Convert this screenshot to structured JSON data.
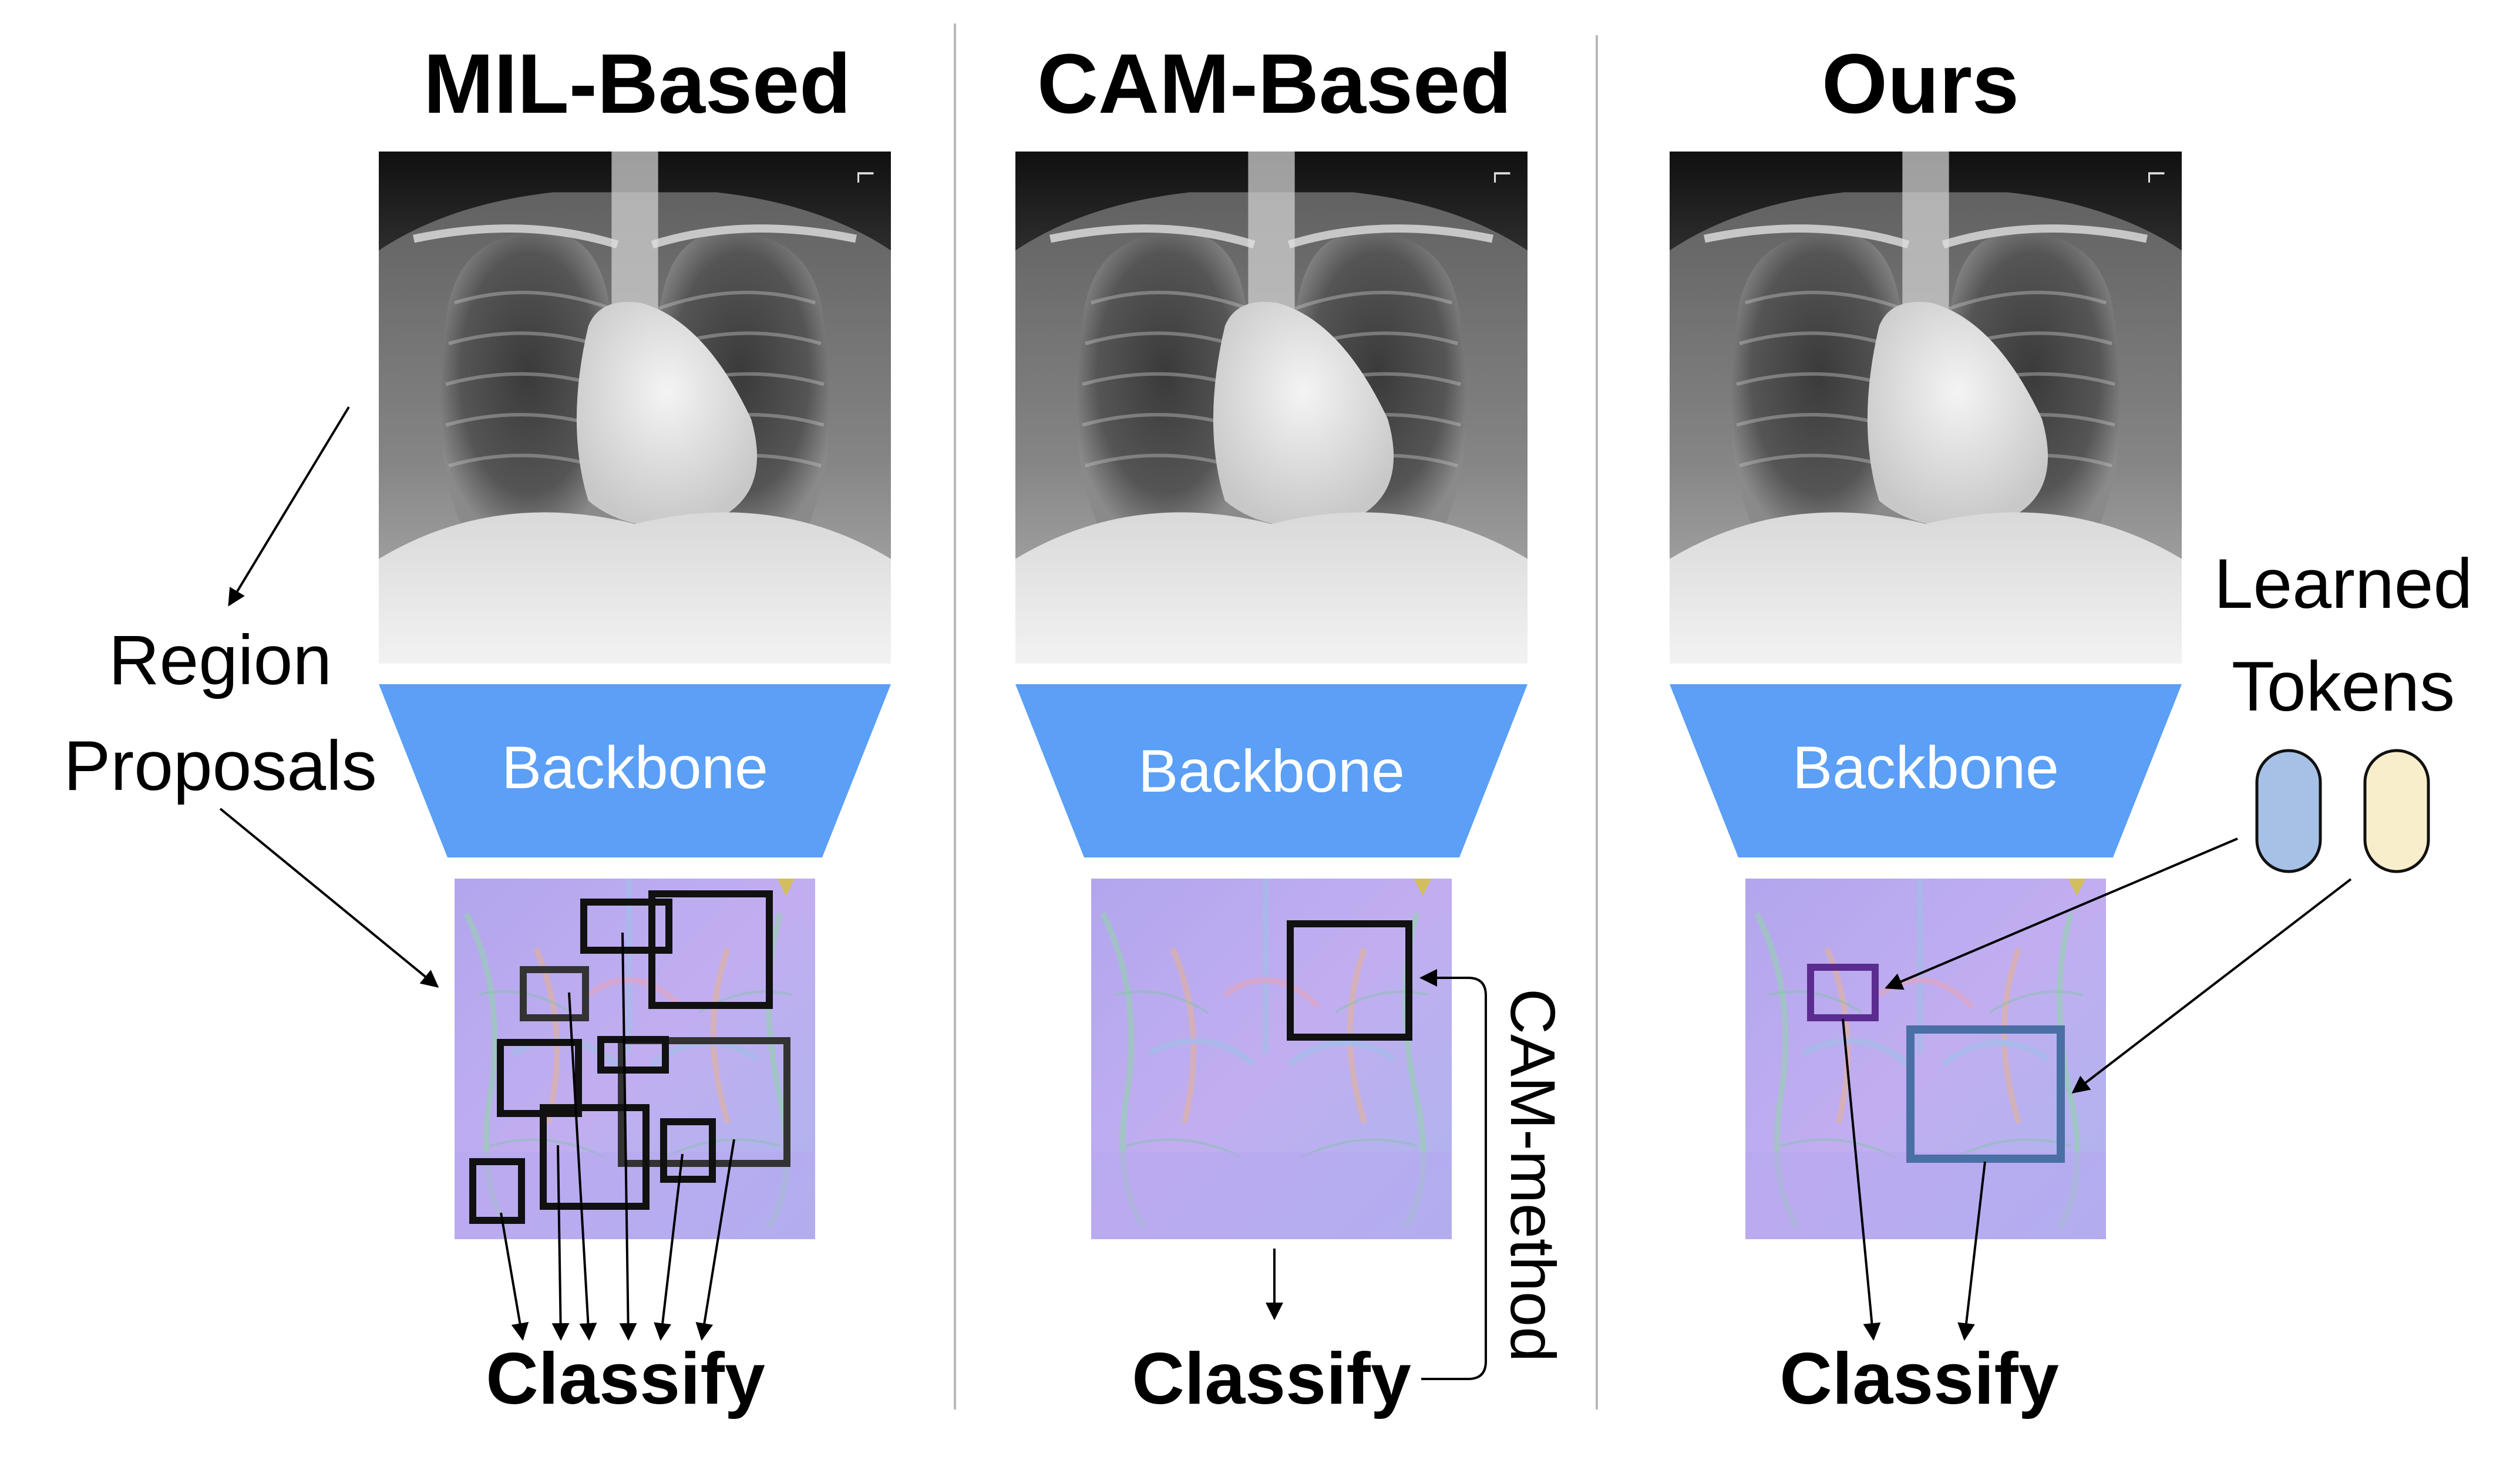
{
  "panels": [
    {
      "title": "MIL-Based",
      "backbone_label": "Backbone",
      "classify_label": "Classify"
    },
    {
      "title": "CAM-Based",
      "backbone_label": "Backbone",
      "classify_label": "Classify"
    },
    {
      "title": "Ours",
      "backbone_label": "Backbone",
      "classify_label": "Classify"
    }
  ],
  "annotations": {
    "region_proposals_line1": "Region",
    "region_proposals_line2": "Proposals",
    "cam_method": "CAM-method",
    "learned_tokens_line1": "Learned",
    "learned_tokens_line2": "Tokens",
    "xray_marker": "L"
  },
  "colors": {
    "backbone": "#5b9ff6",
    "token_blue": "#a7c1e6",
    "token_yellow": "#f9eecb",
    "box_purple": "#5b2c8f",
    "box_blue": "#4a6fa5",
    "divider": "#b8b8b8"
  }
}
